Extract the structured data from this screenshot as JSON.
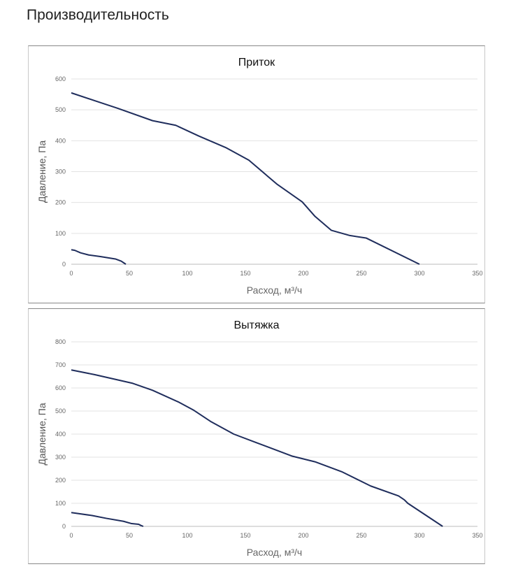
{
  "page_title": "Производительность",
  "chart_data": [
    {
      "type": "line",
      "title": "Приток",
      "xlabel": "Расход, м³/ч",
      "ylabel": "Давление, Па",
      "xlim": [
        0,
        350
      ],
      "ylim": [
        0,
        600
      ],
      "xticks": [
        0,
        50,
        100,
        150,
        200,
        250,
        300,
        350
      ],
      "yticks": [
        0,
        100,
        200,
        300,
        400,
        500,
        600
      ],
      "grid": true,
      "color": "#1f2d5c",
      "series": [
        {
          "name": "curve-main",
          "points": [
            [
              0,
              555
            ],
            [
              20,
              530
            ],
            [
              40,
              505
            ],
            [
              70,
              465
            ],
            [
              90,
              450
            ],
            [
              110,
              415
            ],
            [
              133,
              378
            ],
            [
              153,
              337
            ],
            [
              177,
              260
            ],
            [
              199,
              202
            ],
            [
              210,
              155
            ],
            [
              224,
              110
            ],
            [
              240,
              93
            ],
            [
              254,
              85
            ],
            [
              300,
              0
            ]
          ]
        },
        {
          "name": "curve-low",
          "points": [
            [
              0,
              47
            ],
            [
              3,
              45
            ],
            [
              8,
              37
            ],
            [
              15,
              30
            ],
            [
              25,
              25
            ],
            [
              38,
              17
            ],
            [
              43,
              10
            ],
            [
              47,
              0
            ]
          ]
        }
      ]
    },
    {
      "type": "line",
      "title": "Вытяжка",
      "xlabel": "Расход, м³/ч",
      "ylabel": "Давление, Па",
      "xlim": [
        0,
        350
      ],
      "ylim": [
        0,
        800
      ],
      "xticks": [
        0,
        50,
        100,
        150,
        200,
        250,
        300,
        350
      ],
      "yticks": [
        0,
        100,
        200,
        300,
        400,
        500,
        600,
        700,
        800
      ],
      "grid": true,
      "color": "#1f2d5c",
      "series": [
        {
          "name": "curve-main",
          "points": [
            [
              0,
              678
            ],
            [
              20,
              658
            ],
            [
              53,
              620
            ],
            [
              70,
              590
            ],
            [
              92,
              540
            ],
            [
              105,
              505
            ],
            [
              120,
              455
            ],
            [
              140,
              400
            ],
            [
              160,
              362
            ],
            [
              190,
              305
            ],
            [
              210,
              280
            ],
            [
              233,
              237
            ],
            [
              258,
              175
            ],
            [
              282,
              132
            ],
            [
              287,
              115
            ],
            [
              290,
              100
            ],
            [
              320,
              0
            ]
          ]
        },
        {
          "name": "curve-low",
          "points": [
            [
              0,
              60
            ],
            [
              18,
              47
            ],
            [
              30,
              35
            ],
            [
              45,
              22
            ],
            [
              52,
              12
            ],
            [
              58,
              9
            ],
            [
              60,
              4
            ],
            [
              62,
              0
            ]
          ]
        }
      ]
    }
  ]
}
